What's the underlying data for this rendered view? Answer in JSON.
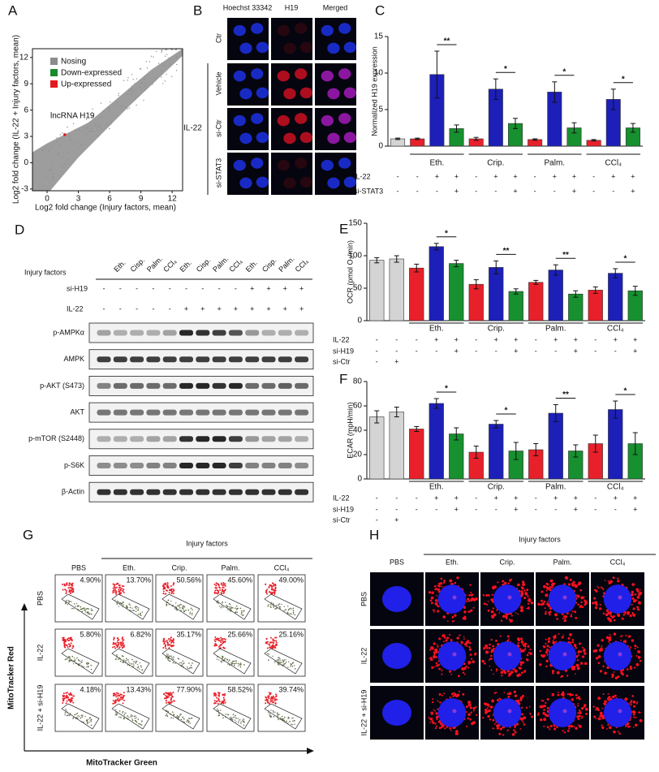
{
  "chart_data": [
    {
      "type": "scatter",
      "label": "A",
      "legend": [
        {
          "name": "Nosing",
          "color": "#8c8c8c"
        },
        {
          "name": "Down-expressed",
          "color": "#1a8a2e"
        },
        {
          "name": "Up-expressed",
          "color": "#e31a1c"
        }
      ],
      "annotation": "lncRNA H19",
      "highlight": {
        "x": 1.7,
        "y": 3.2
      },
      "x_label": "Log2 fold change (Injury factors, mean)",
      "y_label": "Log2 fold change (IL-22 + Injury factors, mean)",
      "xlim": [
        -1.4,
        13
      ],
      "ylim": [
        -3.2,
        13
      ],
      "xticks": [
        0,
        3,
        6,
        9,
        12
      ],
      "yticks": [
        -3,
        0,
        3,
        6,
        9,
        12
      ]
    },
    {
      "type": "bar",
      "label": "C",
      "y_label": "Normalized H19 expression",
      "ylim": [
        0,
        15
      ],
      "yticks": [
        0,
        5,
        10,
        15
      ],
      "values": [
        1.0,
        1.0,
        9.8,
        2.4,
        1.0,
        7.8,
        3.1,
        0.9,
        7.4,
        2.5,
        0.8,
        6.4,
        2.5
      ],
      "errors": [
        0.1,
        0.1,
        3.2,
        0.5,
        0.2,
        1.4,
        0.7,
        0.1,
        1.4,
        0.7,
        0.1,
        1.4,
        0.6
      ],
      "colors": [
        "#d4d4d4",
        "#e8202a",
        "#1c1fb8",
        "#17902f",
        "#e8202a",
        "#1c1fb8",
        "#17902f",
        "#e8202a",
        "#1c1fb8",
        "#17902f",
        "#e8202a",
        "#1c1fb8",
        "#17902f"
      ],
      "groups": [
        "Eth.",
        "Crip.",
        "Palm.",
        "CCl₄"
      ],
      "significance": [
        "**",
        "*",
        "*",
        "*"
      ],
      "conditions": [
        {
          "name": "IL-22",
          "marks": [
            "-",
            "-",
            "+",
            "+",
            "-",
            "+",
            "+",
            "-",
            "+",
            "+",
            "-",
            "+",
            "+"
          ]
        },
        {
          "name": "si-STAT3",
          "marks": [
            "-",
            "-",
            "-",
            "+",
            "-",
            "-",
            "+",
            "-",
            "-",
            "+",
            "-",
            "-",
            "+"
          ]
        }
      ]
    },
    {
      "type": "bar",
      "label": "E",
      "y_label": "OCR (pmol O₂/min)",
      "ylim": [
        0,
        150
      ],
      "yticks": [
        0,
        50,
        100,
        150
      ],
      "values": [
        93,
        95,
        81,
        114,
        88,
        56,
        82,
        45,
        59,
        78,
        41,
        47,
        73,
        46
      ],
      "errors": [
        4,
        5,
        6,
        5,
        5,
        7,
        10,
        4,
        3,
        8,
        5,
        5,
        7,
        7
      ],
      "colors": [
        "#d4d4d4",
        "#d4d4d4",
        "#e8202a",
        "#1c1fb8",
        "#17902f",
        "#e8202a",
        "#1c1fb8",
        "#17902f",
        "#e8202a",
        "#1c1fb8",
        "#17902f",
        "#e8202a",
        "#1c1fb8",
        "#17902f"
      ],
      "groups": [
        "Eth.",
        "Crip.",
        "Palm.",
        "CCl₄"
      ],
      "significance": [
        "*",
        "**",
        "**",
        "*"
      ],
      "conditions": [
        {
          "name": "IL-22",
          "marks": [
            "-",
            "-",
            "-",
            "+",
            "+",
            "-",
            "+",
            "+",
            "-",
            "+",
            "+",
            "-",
            "+",
            "+"
          ]
        },
        {
          "name": "si-H19",
          "marks": [
            "-",
            "-",
            "-",
            "-",
            "+",
            "-",
            "-",
            "+",
            "-",
            "-",
            "+",
            "-",
            "-",
            "+"
          ]
        },
        {
          "name": "si-Ctr",
          "marks": [
            "-",
            "+"
          ]
        }
      ]
    },
    {
      "type": "bar",
      "label": "F",
      "y_label": "ECAR (mpH/min)",
      "ylim": [
        0,
        80
      ],
      "yticks": [
        0,
        20,
        40,
        60,
        80
      ],
      "values": [
        51,
        55,
        41,
        62,
        37,
        22,
        45,
        23,
        24,
        54,
        23,
        29,
        57,
        29
      ],
      "errors": [
        5,
        4,
        2,
        4,
        5,
        5,
        3,
        7,
        5,
        7,
        5,
        7,
        7,
        9
      ],
      "colors": [
        "#d4d4d4",
        "#d4d4d4",
        "#e8202a",
        "#1c1fb8",
        "#17902f",
        "#e8202a",
        "#1c1fb8",
        "#17902f",
        "#e8202a",
        "#1c1fb8",
        "#17902f",
        "#e8202a",
        "#1c1fb8",
        "#17902f"
      ],
      "groups": [
        "Eth.",
        "Crip.",
        "Palm.",
        "CCl₄"
      ],
      "significance": [
        "*",
        "*",
        "**",
        "*"
      ],
      "conditions": [
        {
          "name": "IL-22",
          "marks": [
            "-",
            "-",
            "-",
            "+",
            "+",
            "-",
            "+",
            "+",
            "-",
            "+",
            "+",
            "-",
            "+",
            "+"
          ]
        },
        {
          "name": "si-H19",
          "marks": [
            "-",
            "-",
            "-",
            "-",
            "+",
            "-",
            "-",
            "+",
            "-",
            "-",
            "+",
            "-",
            "-",
            "+"
          ]
        },
        {
          "name": "si-Ctr",
          "marks": [
            "-",
            "+"
          ]
        }
      ]
    }
  ],
  "figure": {
    "B": {
      "label": "B",
      "columns": [
        "Hoechst 33342",
        "H19",
        "Merged"
      ],
      "rows": [
        "Ctr",
        "Vehicle",
        "si-Ctr",
        "si-STAT3"
      ],
      "group": "IL-22"
    },
    "D": {
      "label": "D",
      "row_header": "Injury factors",
      "lanes": [
        "Eth.",
        "Cisp.",
        "Palm.",
        "CCl₄",
        "Eth.",
        "Cisp.",
        "Palm.",
        "CCl₄",
        "Eth.",
        "Cisp.",
        "Palm.",
        "CCl₄"
      ],
      "conditions": [
        {
          "name": "si-H19",
          "marks": [
            "-",
            "-",
            "-",
            "-",
            "-",
            "-",
            "-",
            "-",
            "-",
            "+",
            "+",
            "+",
            "+"
          ]
        },
        {
          "name": "IL-22",
          "marks": [
            "-",
            "-",
            "-",
            "-",
            "-",
            "+",
            "+",
            "+",
            "+",
            "+",
            "+",
            "+",
            "+"
          ]
        }
      ],
      "blots": [
        "p-AMPKα",
        "AMPK",
        "p-AKT (S473)",
        "AKT",
        "p-mTOR (S2448)",
        "p-S6K",
        "β-Actin"
      ]
    },
    "G": {
      "label": "G",
      "header": "Injury factors",
      "columns": [
        "PBS",
        "Eth.",
        "Crip.",
        "Palm.",
        "CCl₄"
      ],
      "rows": [
        "PBS",
        "IL-22",
        "IL-22 + si-H19"
      ],
      "percentages": [
        [
          "4.90%",
          "13.70%",
          "50.56%",
          "45.60%",
          "49.00%"
        ],
        [
          "5.80%",
          "6.82%",
          "35.17%",
          "25.66%",
          "25.16%"
        ],
        [
          "4.18%",
          "13.43%",
          "77.90%",
          "58.52%",
          "39.74%"
        ]
      ],
      "y_label": "MitoTracker Red",
      "x_label": "MitoTracker Green"
    },
    "H": {
      "label": "H",
      "header": "Injury factors",
      "columns": [
        "PBS",
        "Eth.",
        "Crip.",
        "Palm.",
        "CCl₄"
      ],
      "rows": [
        "PBS",
        "IL-22",
        "IL-22 + si-H19"
      ]
    }
  }
}
